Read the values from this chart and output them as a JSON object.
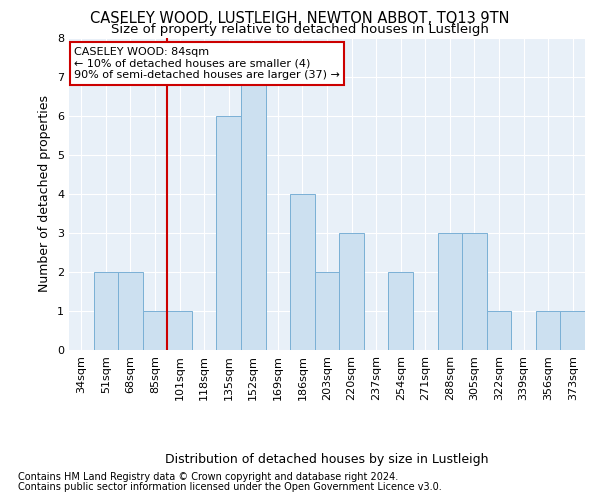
{
  "title": "CASELEY WOOD, LUSTLEIGH, NEWTON ABBOT, TQ13 9TN",
  "subtitle": "Size of property relative to detached houses in Lustleigh",
  "xlabel_bottom": "Distribution of detached houses by size in Lustleigh",
  "ylabel": "Number of detached properties",
  "categories": [
    "34sqm",
    "51sqm",
    "68sqm",
    "85sqm",
    "101sqm",
    "118sqm",
    "135sqm",
    "152sqm",
    "169sqm",
    "186sqm",
    "203sqm",
    "220sqm",
    "237sqm",
    "254sqm",
    "271sqm",
    "288sqm",
    "305sqm",
    "322sqm",
    "339sqm",
    "356sqm",
    "373sqm"
  ],
  "values": [
    0,
    2,
    2,
    1,
    1,
    0,
    6,
    7,
    0,
    4,
    2,
    3,
    0,
    2,
    0,
    3,
    3,
    1,
    0,
    1,
    1
  ],
  "bar_color": "#cce0f0",
  "bar_edge_color": "#7ab0d5",
  "highlight_line_index": 3,
  "highlight_color": "#cc0000",
  "annotation_text": "CASELEY WOOD: 84sqm\n← 10% of detached houses are smaller (4)\n90% of semi-detached houses are larger (37) →",
  "annotation_box_color": "#ffffff",
  "annotation_box_edge": "#cc0000",
  "footnote1": "Contains HM Land Registry data © Crown copyright and database right 2024.",
  "footnote2": "Contains public sector information licensed under the Open Government Licence v3.0.",
  "ylim": [
    0,
    8
  ],
  "yticks": [
    0,
    1,
    2,
    3,
    4,
    5,
    6,
    7,
    8
  ],
  "background_color": "#e8f0f8",
  "grid_color": "#ffffff",
  "title_fontsize": 10.5,
  "subtitle_fontsize": 9.5,
  "ylabel_fontsize": 9,
  "xlabel_fontsize": 9,
  "tick_fontsize": 8,
  "annotation_fontsize": 8,
  "footnote_fontsize": 7
}
